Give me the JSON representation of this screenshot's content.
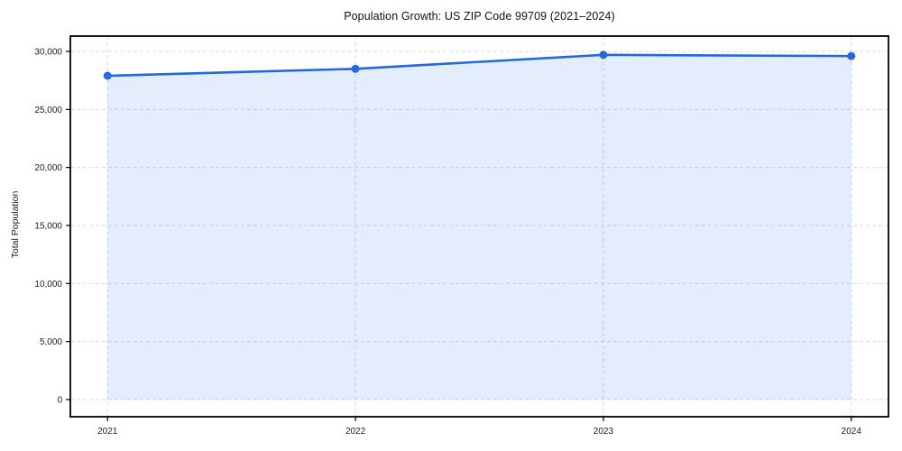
{
  "chart_data": {
    "type": "area",
    "title": "Population Growth: US ZIP Code 99709 (2021–2024)",
    "xlabel": "",
    "ylabel": "Total Population",
    "x": [
      2021,
      2022,
      2023,
      2024
    ],
    "xtick_labels": [
      "2021",
      "2022",
      "2023",
      "2024"
    ],
    "series": [
      {
        "name": "Total Population",
        "values": [
          27900,
          28500,
          29700,
          29600
        ]
      }
    ],
    "baseline": 0,
    "yticks": [
      0,
      5000,
      10000,
      15000,
      20000,
      25000,
      30000
    ],
    "ytick_labels": [
      "0",
      "5,000",
      "10,000",
      "15,000",
      "20,000",
      "25,000",
      "30,000"
    ],
    "ylim": [
      -1480,
      31320
    ],
    "xlim": [
      2020.85,
      2024.15
    ],
    "grid": true,
    "grid_style": "dashed",
    "legend_position": "none",
    "marker": "circle",
    "colors": {
      "line": "#2268e0",
      "marker": "#2268e0",
      "fill": "rgba(34, 104, 224, 0.12)",
      "grid": "#d9d9d9",
      "spine": "#000000",
      "tick_text": "#1a1a1a",
      "title_text": "#111111",
      "background": "#ffffff"
    }
  }
}
